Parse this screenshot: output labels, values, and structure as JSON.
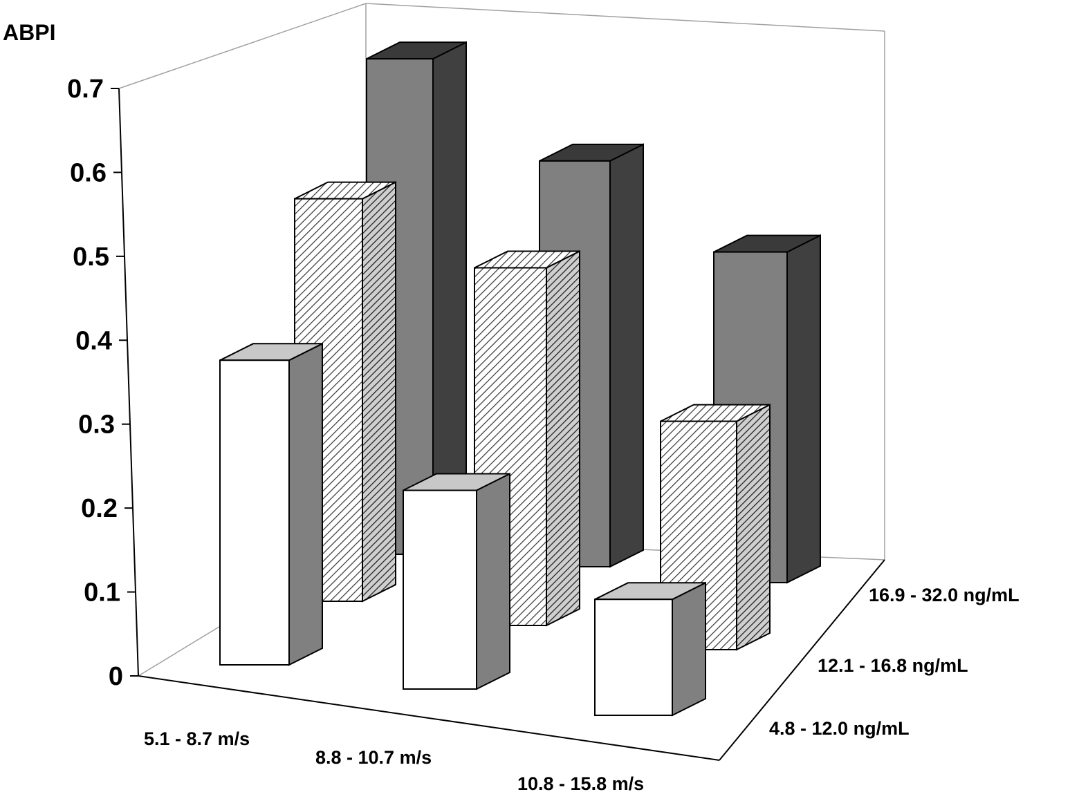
{
  "chart_data": {
    "type": "bar",
    "y_axis": {
      "label": "ABPI",
      "ylim": [
        0,
        0.7
      ],
      "ticks": [
        "0",
        "0.1",
        "0.2",
        "0.3",
        "0.4",
        "0.5",
        "0.6",
        "0.7"
      ]
    },
    "x_categories": [
      "5.1 - 8.7 m/s",
      "8.8 - 10.7 m/s",
      "10.8 - 15.8 m/s"
    ],
    "depth_categories": [
      "4.8 - 12.0 ng/mL",
      "12.1 - 16.8 ng/mL",
      "16.9 - 32.0 ng/mL"
    ],
    "series": [
      {
        "values": [
          0.39,
          0.23,
          0.13
        ],
        "fill": "white"
      },
      {
        "values": [
          0.52,
          0.45,
          0.28
        ],
        "fill": "hatched"
      },
      {
        "values": [
          0.67,
          0.57,
          0.46
        ],
        "fill": "gray"
      }
    ],
    "grid": false,
    "legend": "none"
  },
  "colors": {
    "front_bar_face": "#ffffff",
    "front_bar_top": "#c8c8c8",
    "front_bar_side": "#808080",
    "back_bar_face": "#808080",
    "back_bar_top": "#3a3a3a",
    "back_bar_side": "#404040",
    "axis_line": "#000000",
    "wall_line": "#a0a0a0"
  }
}
